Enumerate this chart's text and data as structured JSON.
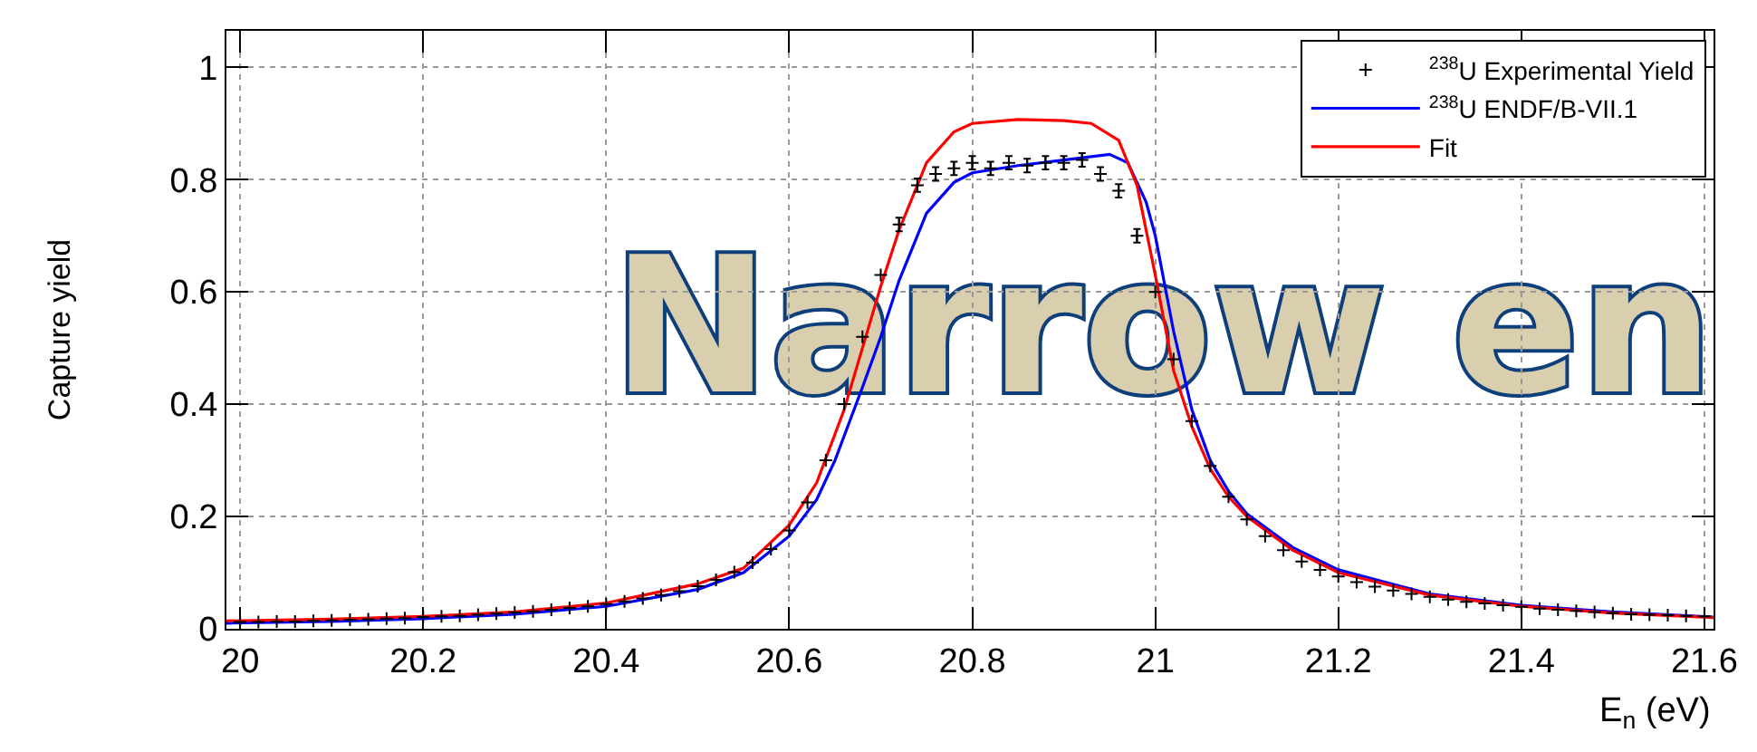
{
  "chart_data": {
    "type": "scatter",
    "xlabel": "E$_{n}$ (eV)",
    "ylabel": "Capture yield",
    "xlim": [
      19.985,
      21.61
    ],
    "xticks": [
      20,
      20.2,
      20.4,
      20.6,
      20.8,
      21,
      21.2,
      21.4,
      21.6
    ],
    "ylim": [
      0,
      1.065
    ],
    "yticks": [
      0,
      0.2,
      0.4,
      0.6,
      0.8,
      1
    ],
    "grid": true,
    "legend": "top right",
    "annotations": [
      "Narrow en"
    ],
    "series": [
      {
        "name": "$^{238}$U Experimental Yield",
        "marker": "cross",
        "color": "#000000",
        "x": [
          20,
          20.02,
          20.04,
          20.06,
          20.08,
          20.1,
          20.12,
          20.14,
          20.16,
          20.18,
          20.2,
          20.22,
          20.24,
          20.26,
          20.28,
          20.3,
          20.32,
          20.34,
          20.36,
          20.38,
          20.4,
          20.42,
          20.44,
          20.46,
          20.48,
          20.5,
          20.52,
          20.54,
          20.56,
          20.58,
          20.6,
          20.62,
          20.64,
          20.66,
          20.68,
          20.7,
          20.72,
          20.74,
          20.76,
          20.78,
          20.8,
          20.82,
          20.84,
          20.86,
          20.88,
          20.9,
          20.92,
          20.94,
          20.96,
          20.98,
          21,
          21.02,
          21.04,
          21.06,
          21.08,
          21.1,
          21.12,
          21.14,
          21.16,
          21.18,
          21.2,
          21.22,
          21.24,
          21.26,
          21.28,
          21.3,
          21.32,
          21.34,
          21.36,
          21.38,
          21.4,
          21.42,
          21.44,
          21.46,
          21.48,
          21.5,
          21.52,
          21.54,
          21.56,
          21.58,
          21.6
        ],
        "values": [
          0.012,
          0.012,
          0.013,
          0.013,
          0.014,
          0.015,
          0.016,
          0.017,
          0.018,
          0.019,
          0.021,
          0.022,
          0.023,
          0.025,
          0.027,
          0.029,
          0.031,
          0.034,
          0.037,
          0.04,
          0.044,
          0.049,
          0.054,
          0.06,
          0.067,
          0.076,
          0.087,
          0.101,
          0.118,
          0.142,
          0.175,
          0.225,
          0.3,
          0.4,
          0.52,
          0.63,
          0.72,
          0.79,
          0.81,
          0.82,
          0.83,
          0.82,
          0.83,
          0.825,
          0.83,
          0.83,
          0.835,
          0.81,
          0.78,
          0.7,
          0.6,
          0.48,
          0.37,
          0.29,
          0.235,
          0.195,
          0.165,
          0.14,
          0.12,
          0.105,
          0.093,
          0.083,
          0.075,
          0.068,
          0.062,
          0.057,
          0.052,
          0.048,
          0.045,
          0.042,
          0.039,
          0.036,
          0.034,
          0.032,
          0.03,
          0.028,
          0.026,
          0.025,
          0.024,
          0.023,
          0.022
        ],
        "errors": [
          null,
          null,
          null,
          null,
          null,
          null,
          null,
          null,
          null,
          null,
          null,
          null,
          null,
          null,
          null,
          null,
          null,
          null,
          null,
          null,
          null,
          null,
          null,
          null,
          null,
          null,
          null,
          null,
          null,
          null,
          null,
          null,
          null,
          null,
          null,
          null,
          0.012,
          0.012,
          0.012,
          0.012,
          0.012,
          0.012,
          0.012,
          0.012,
          0.012,
          0.012,
          0.012,
          0.012,
          0.012,
          0.012,
          null,
          null,
          null,
          null,
          null,
          null,
          null,
          null,
          null,
          null,
          null,
          null,
          null,
          null,
          null,
          null,
          null,
          null,
          null,
          null,
          null,
          null,
          null,
          null,
          null,
          null,
          null,
          null,
          null,
          null,
          null
        ]
      },
      {
        "name": "$^{238}$U ENDF/B-VII.1",
        "type": "line",
        "marker": "none",
        "color": "#0000ff",
        "x": [
          19.985,
          20.1,
          20.2,
          20.3,
          20.4,
          20.5,
          20.55,
          20.6,
          20.63,
          20.65,
          20.68,
          20.7,
          20.72,
          20.75,
          20.78,
          20.8,
          20.85,
          20.9,
          20.95,
          20.97,
          20.99,
          21,
          21.02,
          21.04,
          21.06,
          21.08,
          21.1,
          21.15,
          21.2,
          21.3,
          21.4,
          21.5,
          21.61
        ],
        "values": [
          0.01,
          0.013,
          0.018,
          0.026,
          0.04,
          0.07,
          0.1,
          0.165,
          0.23,
          0.3,
          0.43,
          0.52,
          0.62,
          0.74,
          0.795,
          0.812,
          0.825,
          0.835,
          0.845,
          0.83,
          0.76,
          0.7,
          0.53,
          0.39,
          0.3,
          0.245,
          0.205,
          0.145,
          0.105,
          0.062,
          0.042,
          0.03,
          0.021
        ]
      },
      {
        "name": "Fit",
        "type": "line",
        "marker": "none",
        "color": "#ff0000",
        "x": [
          19.985,
          20.1,
          20.2,
          20.3,
          20.4,
          20.5,
          20.55,
          20.6,
          20.63,
          20.66,
          20.68,
          20.7,
          20.72,
          20.75,
          20.78,
          20.8,
          20.85,
          20.9,
          20.93,
          20.96,
          20.98,
          21,
          21.02,
          21.04,
          21.06,
          21.08,
          21.1,
          21.15,
          21.2,
          21.3,
          21.4,
          21.5,
          21.61
        ],
        "values": [
          0.014,
          0.017,
          0.022,
          0.03,
          0.046,
          0.08,
          0.108,
          0.185,
          0.26,
          0.39,
          0.5,
          0.61,
          0.71,
          0.83,
          0.885,
          0.9,
          0.907,
          0.905,
          0.9,
          0.87,
          0.79,
          0.63,
          0.46,
          0.36,
          0.285,
          0.235,
          0.2,
          0.14,
          0.1,
          0.06,
          0.04,
          0.028,
          0.02
        ]
      }
    ]
  }
}
